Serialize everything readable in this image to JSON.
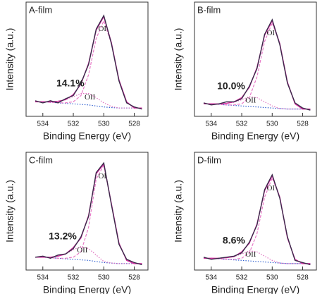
{
  "chart_data": [
    {
      "type": "line",
      "title": "A-film",
      "x_label": "Binding Energy (eV)",
      "y_label": "Intensity (a.u.)",
      "percent_label": "14.1%",
      "peak_labels": [
        "OI",
        "OII"
      ],
      "xlim": [
        535.1,
        527.1
      ],
      "xticks": [
        534,
        532,
        530,
        528
      ],
      "ylim": [
        0,
        110
      ],
      "x": [
        534.5,
        534,
        533.5,
        533,
        532.5,
        532,
        531.5,
        531,
        530.5,
        530,
        529.5,
        529,
        528.5,
        528,
        527.5
      ],
      "series": [
        {
          "color": "#3060d0",
          "line_style": "dotted",
          "values": [
            14,
            14,
            13.5,
            13,
            12.5,
            12,
            11.5,
            11,
            10,
            9,
            8.5,
            8,
            8,
            8,
            8
          ]
        },
        {
          "color": "#e070c0",
          "line_style": "dotted",
          "values": [
            14,
            14,
            14,
            14.5,
            16,
            19,
            22,
            22,
            18,
            13,
            9.5,
            8,
            8,
            8,
            8
          ]
        },
        {
          "color": "#e87bc8",
          "line_style": "dashed",
          "values": [
            14,
            14,
            13.5,
            13,
            13,
            14,
            20,
            40,
            75,
            92,
            70,
            35,
            14,
            8,
            8
          ]
        },
        {
          "color": "#d62ca0",
          "line_style": "solid",
          "values": [
            14,
            14,
            14,
            14.5,
            16,
            21,
            31,
            51,
            83,
            96,
            71,
            35,
            14,
            8,
            8
          ]
        },
        {
          "color": "#3a2a4a",
          "line_style": "solid",
          "values": [
            15,
            13,
            15,
            13,
            17,
            20,
            32,
            50,
            84,
            97,
            70,
            34,
            13,
            9,
            7
          ]
        }
      ]
    },
    {
      "type": "line",
      "title": "B-film",
      "x_label": "Binding Energy (eV)",
      "y_label": "Intensity (a.u.)",
      "percent_label": "10.0%",
      "peak_labels": [
        "OI",
        "OII"
      ],
      "xlim": [
        535.1,
        527.1
      ],
      "xticks": [
        534,
        532,
        530,
        528
      ],
      "ylim": [
        0,
        110
      ],
      "x": [
        534.5,
        534,
        533.5,
        533,
        532.5,
        532,
        531.5,
        531,
        530.5,
        530,
        529.5,
        529,
        528.5,
        528,
        527.5
      ],
      "series": [
        {
          "color": "#3060d0",
          "line_style": "dotted",
          "values": [
            12,
            12,
            11.5,
            11,
            10.5,
            10,
            9.5,
            9,
            8.5,
            8,
            7.5,
            7,
            7,
            7,
            7
          ]
        },
        {
          "color": "#e070c0",
          "line_style": "dotted",
          "values": [
            12,
            12,
            12,
            12.5,
            13.5,
            16,
            19,
            18,
            14,
            10,
            7.5,
            7,
            7,
            7,
            7
          ]
        },
        {
          "color": "#e87bc8",
          "line_style": "dashed",
          "values": [
            12,
            12,
            11.5,
            11,
            11,
            12,
            18,
            38,
            72,
            90,
            70,
            33,
            12,
            7,
            7
          ]
        },
        {
          "color": "#d62ca0",
          "line_style": "solid",
          "values": [
            12,
            12,
            12,
            12.5,
            14,
            18,
            28,
            47,
            78,
            92,
            70,
            33,
            12,
            7,
            7
          ]
        },
        {
          "color": "#3a2a4a",
          "line_style": "solid",
          "values": [
            13,
            11,
            12,
            14,
            14,
            17,
            29,
            46,
            79,
            93,
            69,
            32,
            13,
            8,
            6
          ]
        }
      ]
    },
    {
      "type": "line",
      "title": "C-film",
      "x_label": "Binding Energy (eV)",
      "y_label": "Intensity (a.u.)",
      "percent_label": "13.2%",
      "peak_labels": [
        "OI",
        "OII"
      ],
      "xlim": [
        535.1,
        527.1
      ],
      "xticks": [
        534,
        532,
        530,
        528
      ],
      "ylim": [
        0,
        110
      ],
      "x": [
        534.5,
        534,
        533.5,
        533,
        532.5,
        532,
        531.5,
        531,
        530.5,
        530,
        529.5,
        529,
        528.5,
        528,
        527.5
      ],
      "series": [
        {
          "color": "#3060d0",
          "line_style": "dotted",
          "values": [
            12,
            12,
            11.5,
            11,
            10.5,
            10,
            9.5,
            9,
            8,
            7,
            6.5,
            6,
            6,
            6,
            6
          ]
        },
        {
          "color": "#e070c0",
          "line_style": "dotted",
          "values": [
            12,
            12,
            12,
            13,
            15,
            19,
            22,
            20,
            14,
            8,
            6.5,
            6,
            6,
            6,
            6
          ]
        },
        {
          "color": "#e87bc8",
          "line_style": "dashed",
          "values": [
            12,
            12,
            11.5,
            11,
            11,
            12,
            17,
            40,
            85,
            98,
            62,
            25,
            9,
            6,
            6
          ]
        },
        {
          "color": "#d62ca0",
          "line_style": "solid",
          "values": [
            12,
            12,
            12,
            13,
            15,
            21,
            30,
            51,
            90,
            99,
            62,
            25,
            9,
            6,
            6
          ]
        },
        {
          "color": "#3a2a4a",
          "line_style": "solid",
          "values": [
            12,
            13,
            11,
            14,
            15,
            20,
            31,
            50,
            91,
            100,
            61,
            24,
            10,
            7,
            5
          ]
        }
      ]
    },
    {
      "type": "line",
      "title": "D-film",
      "x_label": "Binding Energy (eV)",
      "y_label": "Intensity (a.u.)",
      "percent_label": "8.6%",
      "peak_labels": [
        "OI",
        "OII"
      ],
      "xlim": [
        535.1,
        527.1
      ],
      "xticks": [
        534,
        532,
        530,
        528
      ],
      "ylim": [
        0,
        110
      ],
      "x": [
        534.5,
        534,
        533.5,
        533,
        532.5,
        532,
        531.5,
        531,
        530.5,
        530,
        529.5,
        529,
        528.5,
        528,
        527.5
      ],
      "series": [
        {
          "color": "#3060d0",
          "line_style": "dotted",
          "values": [
            11,
            11,
            10.5,
            10,
            9.5,
            9,
            8.5,
            8,
            7.5,
            7,
            6.5,
            6,
            6,
            6,
            6
          ]
        },
        {
          "color": "#e070c0",
          "line_style": "dotted",
          "values": [
            11,
            11,
            11,
            11.5,
            12.5,
            15,
            18,
            17,
            13,
            9,
            6.5,
            6,
            6,
            6,
            6
          ]
        },
        {
          "color": "#e87bc8",
          "line_style": "dashed",
          "values": [
            11,
            11,
            10.5,
            10,
            10,
            11,
            16,
            34,
            68,
            86,
            68,
            30,
            10,
            6,
            6
          ]
        },
        {
          "color": "#d62ca0",
          "line_style": "solid",
          "values": [
            11,
            11,
            11,
            11.5,
            12.5,
            17,
            25,
            43,
            74,
            88,
            68,
            30,
            10,
            6,
            6
          ]
        },
        {
          "color": "#3a2a4a",
          "line_style": "solid",
          "values": [
            12,
            10,
            11,
            12,
            13,
            16,
            26,
            42,
            75,
            89,
            67,
            31,
            9,
            7,
            5
          ]
        }
      ]
    }
  ]
}
